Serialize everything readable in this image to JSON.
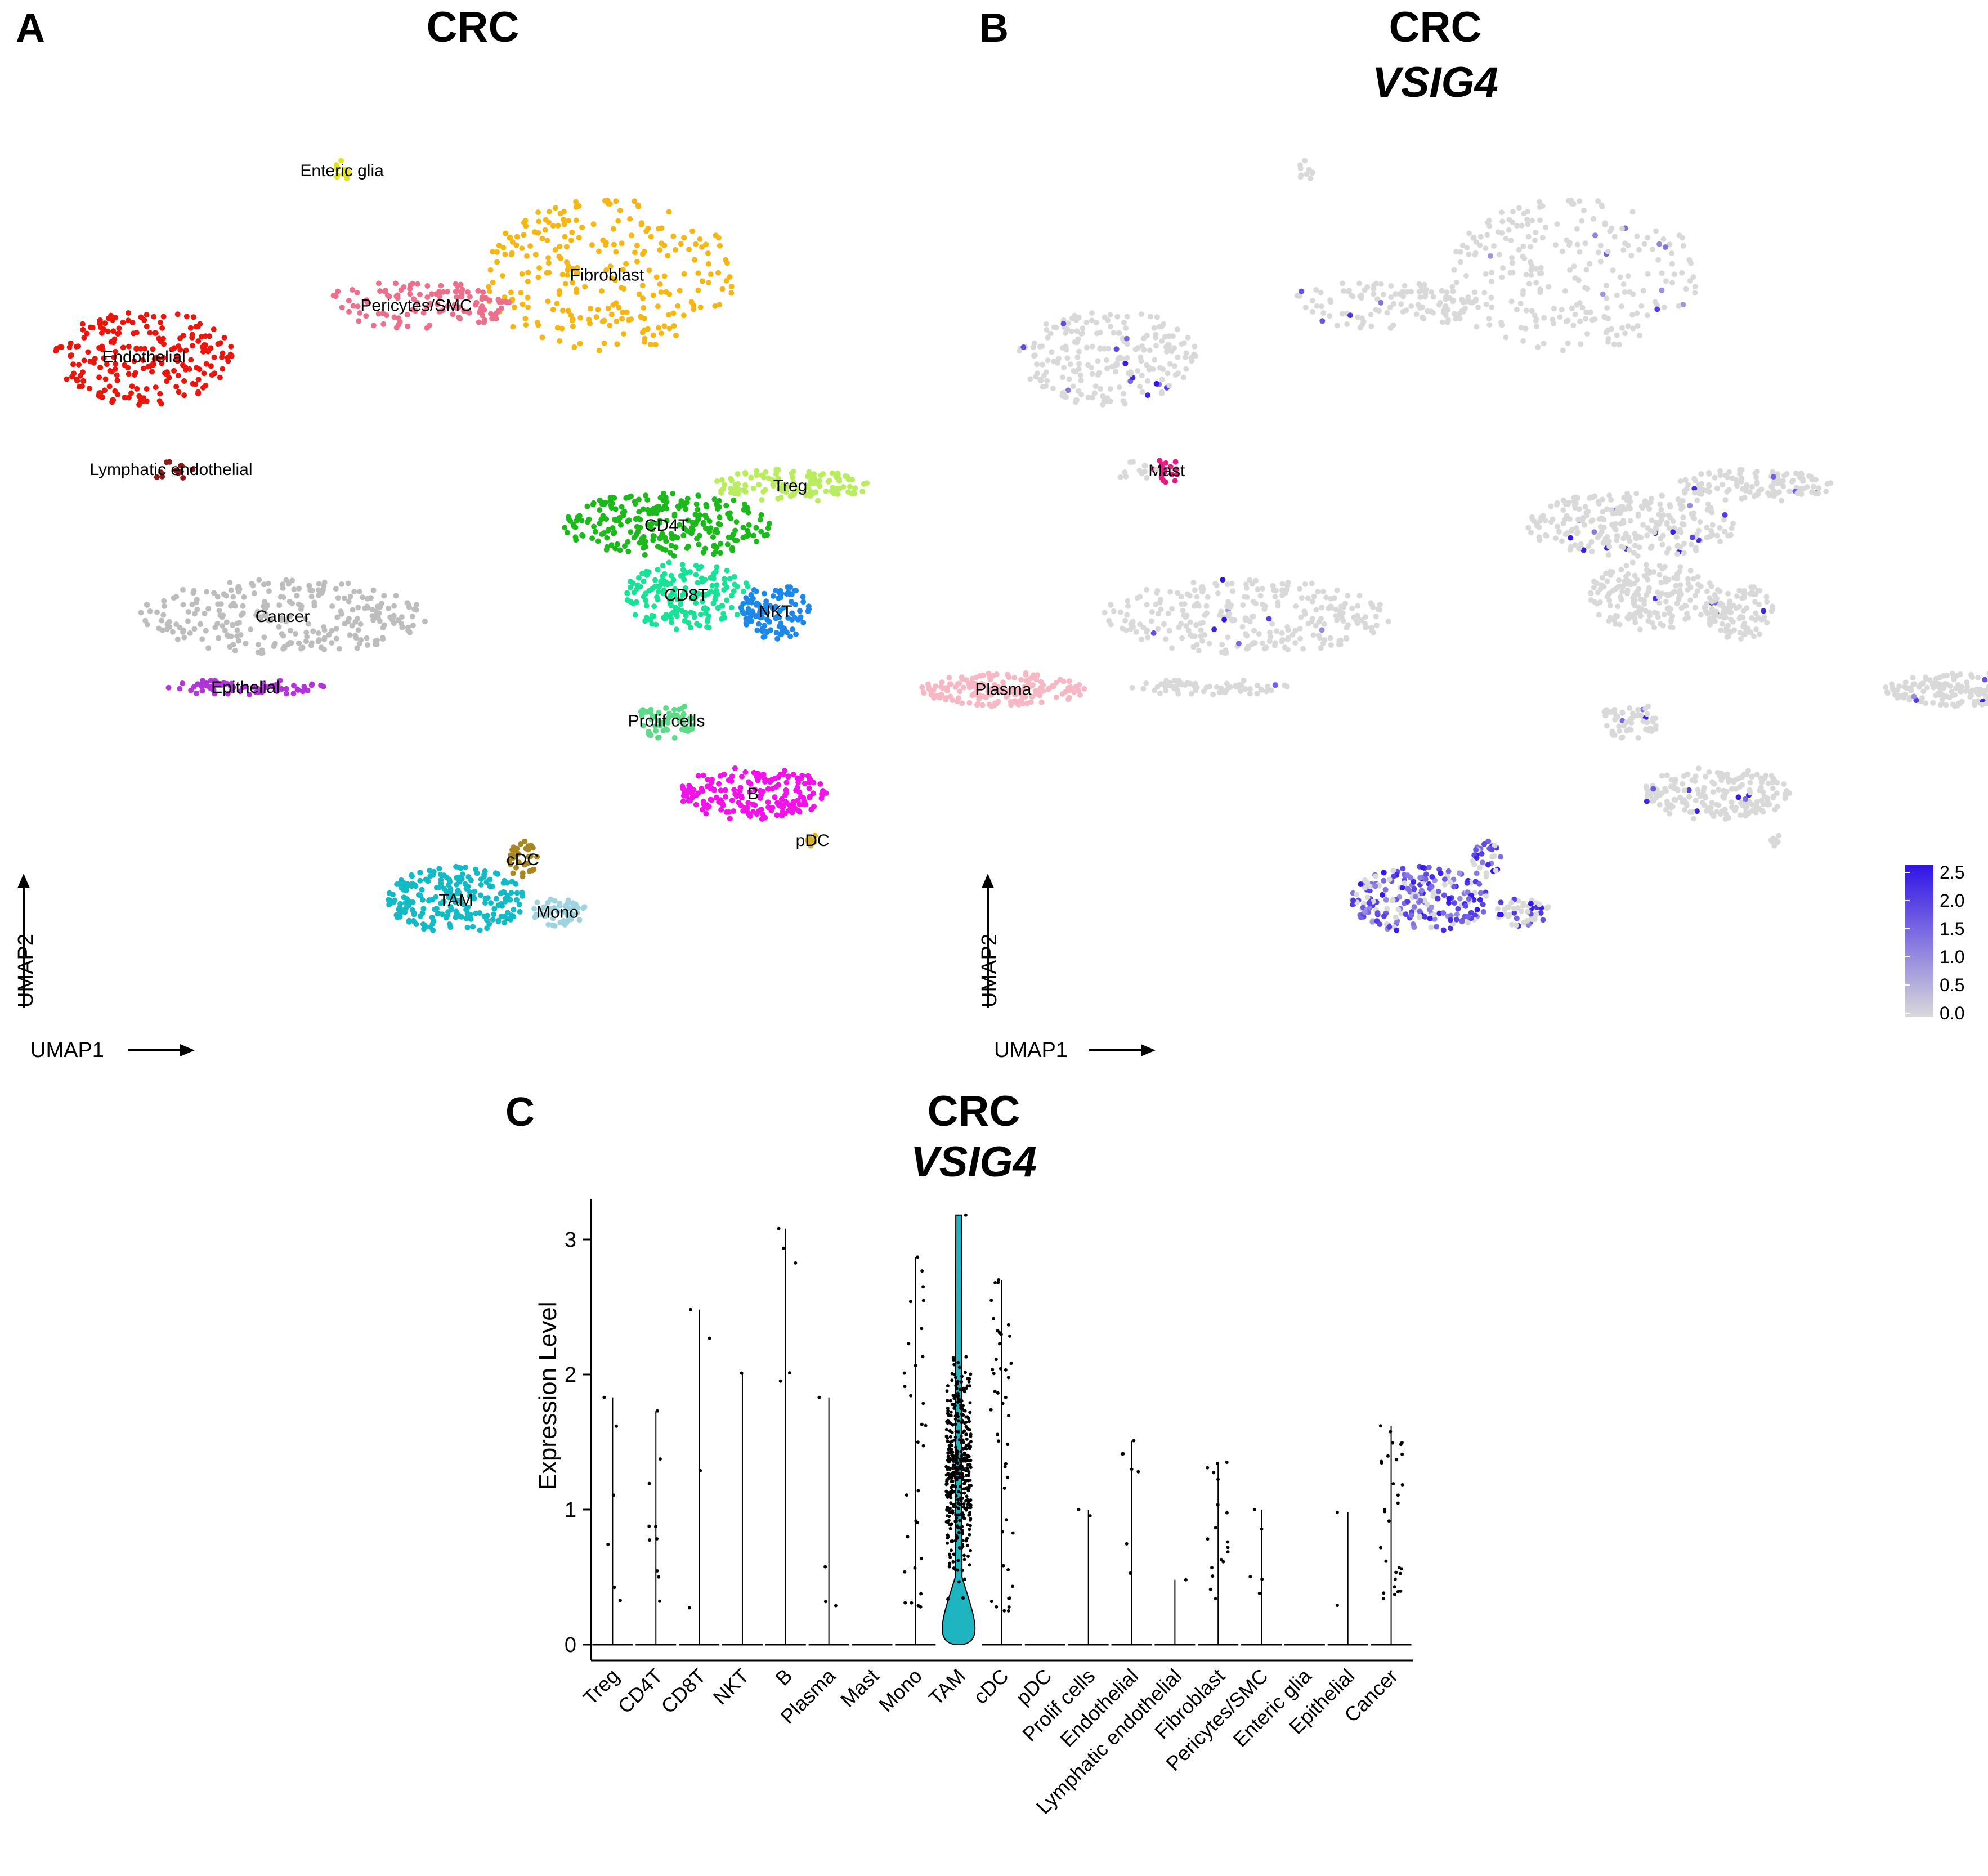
{
  "panels": {
    "a": {
      "letter": "A",
      "title": "CRC"
    },
    "b": {
      "letter": "B",
      "title": "CRC",
      "subtitle": "VSIG4"
    },
    "c": {
      "letter": "C",
      "title": "CRC",
      "subtitle": "VSIG4"
    }
  },
  "umap_axes": {
    "x": "UMAP1",
    "y": "UMAP2"
  },
  "chart_data": [
    {
      "type": "scatter",
      "title": "CRC",
      "xlabel": "UMAP1",
      "ylabel": "UMAP2",
      "xlim": [
        0,
        100
      ],
      "ylim": [
        0,
        100
      ],
      "clusters": [
        {
          "name": "Enteric glia",
          "color": "#e3e31b",
          "cx": 12.9,
          "cy": 86.5,
          "rx": 0.4,
          "ry": 1.0,
          "n": 10
        },
        {
          "name": "Fibroblast",
          "color": "#f5b717",
          "cx": 23.6,
          "cy": 76.2,
          "rx": 5.2,
          "ry": 7.5,
          "n": 260
        },
        {
          "name": "Pericytes/SMC",
          "color": "#ec6f8c",
          "cx": 15.9,
          "cy": 73.2,
          "rx": 3.8,
          "ry": 2.5,
          "n": 120
        },
        {
          "name": "Endothelial",
          "color": "#e8160c",
          "cx": 4.9,
          "cy": 68.1,
          "rx": 3.6,
          "ry": 4.8,
          "n": 220
        },
        {
          "name": "Lymphatic endothelial",
          "color": "#8b1a1a",
          "cx": 6.0,
          "cy": 57.0,
          "rx": 0.9,
          "ry": 1.0,
          "n": 12
        },
        {
          "name": "Treg",
          "color": "#b9ec5e",
          "cx": 31.0,
          "cy": 55.4,
          "rx": 3.2,
          "ry": 1.6,
          "n": 120
        },
        {
          "name": "CD4T",
          "color": "#1cb81c",
          "cx": 26.0,
          "cy": 51.5,
          "rx": 4.3,
          "ry": 3.2,
          "n": 260
        },
        {
          "name": "CD8T",
          "color": "#19e297",
          "cx": 26.8,
          "cy": 44.6,
          "rx": 2.6,
          "ry": 3.5,
          "n": 180
        },
        {
          "name": "NKT",
          "color": "#1e88e8",
          "cx": 30.4,
          "cy": 43.0,
          "rx": 1.4,
          "ry": 2.8,
          "n": 110
        },
        {
          "name": "Cancer",
          "color": "#bdbdbd",
          "cx": 10.5,
          "cy": 42.5,
          "rx": 5.8,
          "ry": 3.7,
          "n": 280
        },
        {
          "name": "Epithelial",
          "color": "#b036d6",
          "cx": 9.0,
          "cy": 35.5,
          "rx": 3.2,
          "ry": 0.8,
          "n": 70
        },
        {
          "name": "Prolif cells",
          "color": "#5fd98a",
          "cx": 26.0,
          "cy": 32.2,
          "rx": 1.2,
          "ry": 1.8,
          "n": 60
        },
        {
          "name": "Plasma",
          "color": "#f7b8c5",
          "cx": 39.6,
          "cy": 35.3,
          "rx": 3.3,
          "ry": 1.7,
          "n": 180
        },
        {
          "name": "B",
          "color": "#f114e9",
          "cx": 29.5,
          "cy": 25.0,
          "rx": 3.0,
          "ry": 2.6,
          "n": 200
        },
        {
          "name": "pDC",
          "color": "#d9b22a",
          "cx": 31.9,
          "cy": 20.4,
          "rx": 0.3,
          "ry": 0.6,
          "n": 8
        },
        {
          "name": "cDC",
          "color": "#a88620",
          "cx": 20.2,
          "cy": 18.5,
          "rx": 0.6,
          "ry": 2.2,
          "n": 30
        },
        {
          "name": "TAM",
          "color": "#14b9c6",
          "cx": 17.5,
          "cy": 14.5,
          "rx": 2.8,
          "ry": 3.3,
          "n": 230
        },
        {
          "name": "Mono",
          "color": "#9fd3e0",
          "cx": 21.6,
          "cy": 13.3,
          "rx": 1.2,
          "ry": 1.4,
          "n": 50
        },
        {
          "name": "Mast",
          "color": "#e21f80",
          "cx": 46.2,
          "cy": 56.9,
          "rx": 0.6,
          "ry": 1.3,
          "n": 20
        }
      ]
    },
    {
      "type": "scatter",
      "title": "CRC VSIG4",
      "xlabel": "UMAP1",
      "ylabel": "UMAP2",
      "color_scale": {
        "low": "#d9d9d9",
        "high": "#3014e8",
        "min": 0.0,
        "max": 2.5,
        "ticks": [
          "2.5",
          "2.0",
          "1.5",
          "1.0",
          "0.5",
          "0.0"
        ]
      },
      "high_expression_cluster": "TAM/Mono/cDC (bottom)"
    },
    {
      "type": "violin",
      "title": "CRC VSIG4",
      "ylabel": "Expression Level",
      "ylim": [
        0,
        3.3
      ],
      "yticks": [
        "0",
        "1",
        "2",
        "3"
      ],
      "violin_color": "#1fb5c0",
      "categories": [
        "Treg",
        "CD4T",
        "CD8T",
        "NKT",
        "B",
        "Plasma",
        "Mast",
        "Mono",
        "TAM",
        "cDC",
        "pDC",
        "Prolif cells",
        "Endothelial",
        "Lymphatic endothelial",
        "Fibroblast",
        "Pericytes/SMC",
        "Enteric glia",
        "Epithelial",
        "Cancer"
      ],
      "max_values": [
        1.83,
        1.73,
        2.48,
        2.01,
        3.08,
        1.83,
        0,
        2.87,
        3.18,
        2.7,
        0,
        1.0,
        1.51,
        0.48,
        1.35,
        1.0,
        0,
        0.98,
        1.62
      ],
      "nonzero_counts": [
        6,
        10,
        4,
        1,
        5,
        4,
        0,
        30,
        400,
        45,
        0,
        2,
        7,
        1,
        18,
        5,
        0,
        2,
        30
      ]
    }
  ]
}
